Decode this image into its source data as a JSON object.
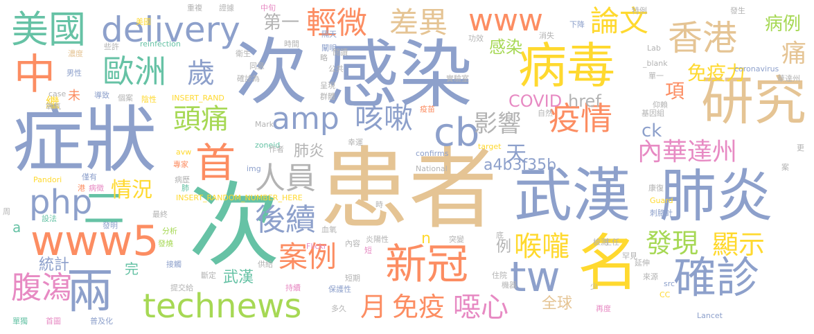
{
  "words": [
    {
      "text": "患者",
      "color": "#e5c494"
    },
    {
      "text": "次",
      "color": "#66c2a5"
    },
    {
      "text": "感染",
      "color": "#8da0cb"
    },
    {
      "text": "症狀",
      "color": "#8da0cb"
    },
    {
      "text": "武漢",
      "color": "#8da0cb"
    },
    {
      "text": "肺炎",
      "color": "#8da0cb"
    },
    {
      "text": "研究",
      "color": "#e5c494"
    },
    {
      "text": "病毒",
      "color": "#ffd92f"
    },
    {
      "text": "名",
      "color": "#ffd92f"
    },
    {
      "text": "首",
      "color": "#fc8d62"
    },
    {
      "text": "中",
      "color": "#fc8d62"
    },
    {
      "text": "香港",
      "color": "#e5c494"
    },
    {
      "text": "美國",
      "color": "#66c2a5"
    },
    {
      "text": "delivery",
      "color": "#8da0cb"
    },
    {
      "text": "technews",
      "color": "#a6d854"
    },
    {
      "text": "www5",
      "color": "#fc8d62"
    },
    {
      "text": "新冠",
      "color": "#fc8d62"
    },
    {
      "text": "確診",
      "color": "#8da0cb"
    },
    {
      "text": "cb",
      "color": "#8da0cb"
    },
    {
      "text": "tw",
      "color": "#8da0cb"
    },
    {
      "text": "兩",
      "color": "#8da0cb"
    },
    {
      "text": "www",
      "color": "#fc8d62"
    },
    {
      "text": "php",
      "color": "#8da0cb"
    },
    {
      "text": "amp",
      "color": "#8da0cb"
    },
    {
      "text": "二",
      "color": "#66c2a5"
    },
    {
      "text": "歐洲",
      "color": "#66c2a5"
    },
    {
      "text": "輕微",
      "color": "#fc8d62"
    },
    {
      "text": "差異",
      "color": "#e5c494"
    },
    {
      "text": "論文",
      "color": "#ffd92f"
    },
    {
      "text": "疫情",
      "color": "#fc8d62"
    },
    {
      "text": "歲",
      "color": "#8da0cb"
    },
    {
      "text": "頭痛",
      "color": "#a6d854"
    },
    {
      "text": "咳嗽",
      "color": "#8da0cb"
    },
    {
      "text": "人員",
      "color": "#b3b3b3"
    },
    {
      "text": "案例",
      "color": "#fc8d62"
    },
    {
      "text": "後續",
      "color": "#8da0cb"
    },
    {
      "text": "喉嚨",
      "color": "#ffd92f"
    },
    {
      "text": "發現",
      "color": "#a6d854"
    },
    {
      "text": "顯示",
      "color": "#ffd92f"
    },
    {
      "text": "腹瀉",
      "color": "#e78ac3"
    },
    {
      "text": "免疫",
      "color": "#fc8d62"
    },
    {
      "text": "噁心",
      "color": "#e78ac3"
    },
    {
      "text": "內華達州",
      "color": "#e78ac3"
    },
    {
      "text": "影響",
      "color": "#b3b3b3"
    },
    {
      "text": "情況",
      "color": "#ffd92f"
    },
    {
      "text": "項",
      "color": "#fc8d62"
    },
    {
      "text": "免疫力",
      "color": "#ffd92f"
    },
    {
      "text": "天",
      "color": "#8da0cb"
    },
    {
      "text": "月",
      "color": "#fc8d62"
    },
    {
      "text": "痛",
      "color": "#e5c494"
    },
    {
      "text": "病例",
      "color": "#a6d854"
    },
    {
      "text": "第一",
      "color": "#b3b3b3"
    },
    {
      "text": "感染",
      "color": "#a6d854"
    },
    {
      "text": "COVID",
      "color": "#e78ac3"
    },
    {
      "text": "href",
      "color": "#b3b3b3"
    },
    {
      "text": "a4b3f35b",
      "color": "#8da0cb"
    },
    {
      "text": "ck",
      "color": "#8da0cb"
    },
    {
      "text": "全球",
      "color": "#e5c494"
    },
    {
      "text": "統計",
      "color": "#8da0cb"
    },
    {
      "text": "武漢",
      "color": "#66c2a5"
    },
    {
      "text": "肺炎",
      "color": "#b3b3b3"
    },
    {
      "text": "n",
      "color": "#ffd92f"
    },
    {
      "text": "例",
      "color": "#b3b3b3"
    },
    {
      "text": "完",
      "color": "#66c2a5"
    },
    {
      "text": "a",
      "color": "#66c2a5"
    },
    {
      "text": "繼",
      "color": "#ffd92f"
    },
    {
      "text": "未",
      "color": "#fc8d62"
    },
    {
      "text": "reinfection",
      "color": "#66c2a5"
    },
    {
      "text": "INSERT_RAND",
      "color": "#ffd92f"
    },
    {
      "text": "INSERT_RANDOM_NUMBER_HERE",
      "color": "#ffd92f"
    },
    {
      "text": "coronavirus",
      "color": "#8da0cb"
    },
    {
      "text": "confirms",
      "color": "#8da0cb"
    },
    {
      "text": "National",
      "color": "#b3b3b3"
    },
    {
      "text": "Lancet",
      "color": "#8da0cb"
    },
    {
      "text": "Pandori",
      "color": "#ffd92f"
    },
    {
      "text": "zoneid",
      "color": "#66c2a5"
    },
    {
      "text": "Flickr",
      "color": "#e78ac3"
    },
    {
      "text": "Guard",
      "color": "#ffd92f"
    },
    {
      "text": "target",
      "color": "#ffd92f"
    },
    {
      "text": "Mark",
      "color": "#b3b3b3"
    },
    {
      "text": "img",
      "color": "#8da0cb"
    },
    {
      "text": "avw",
      "color": "#ffd92f"
    },
    {
      "text": "case",
      "color": "#b3b3b3"
    },
    {
      "text": "Lab",
      "color": "#b3b3b3"
    },
    {
      "text": "_blank",
      "color": "#b3b3b3"
    },
    {
      "text": "src",
      "color": "#8da0cb"
    },
    {
      "text": "CC",
      "color": "#ffd92f"
    },
    {
      "text": "美國",
      "color": "#ffd92f"
    },
    {
      "text": "濃度",
      "color": "#e5c494"
    },
    {
      "text": "些許",
      "color": "#b3b3b3"
    },
    {
      "text": "男性",
      "color": "#8da0cb"
    },
    {
      "text": "氧氣",
      "color": "#b3b3b3"
    },
    {
      "text": "導致",
      "color": "#8da0cb"
    },
    {
      "text": "個案",
      "color": "#b3b3b3"
    },
    {
      "text": "陰性",
      "color": "#ffd92f"
    },
    {
      "text": "專家",
      "color": "#fc8d62"
    },
    {
      "text": "僅有",
      "color": "#8da0cb"
    },
    {
      "text": "病歷",
      "color": "#b3b3b3"
    },
    {
      "text": "港",
      "color": "#fc8d62"
    },
    {
      "text": "病徵",
      "color": "#e78ac3"
    },
    {
      "text": "肺",
      "color": "#66c2a5"
    },
    {
      "text": "最終",
      "color": "#b3b3b3"
    },
    {
      "text": "設法",
      "color": "#66c2a5"
    },
    {
      "text": "發明",
      "color": "#8da0cb"
    },
    {
      "text": "分析",
      "color": "#a6d854"
    },
    {
      "text": "發燒",
      "color": "#a6d854"
    },
    {
      "text": "接觸",
      "color": "#8da0cb"
    },
    {
      "text": "斷定",
      "color": "#b3b3b3"
    },
    {
      "text": "提交給",
      "color": "#b3b3b3"
    },
    {
      "text": "單獨",
      "color": "#66c2a5"
    },
    {
      "text": "首圖",
      "color": "#e78ac3"
    },
    {
      "text": "普及化",
      "color": "#8da0cb"
    },
    {
      "text": "多久",
      "color": "#b3b3b3"
    },
    {
      "text": "持續",
      "color": "#e78ac3"
    },
    {
      "text": "保護性",
      "color": "#8da0cb"
    },
    {
      "text": "供給",
      "color": "#b3b3b3"
    },
    {
      "text": "短期",
      "color": "#b3b3b3"
    },
    {
      "text": "短",
      "color": "#e78ac3"
    },
    {
      "text": "內容",
      "color": "#b3b3b3"
    },
    {
      "text": "炎陽性",
      "color": "#b3b3b3"
    },
    {
      "text": "血氧",
      "color": "#b3b3b3"
    },
    {
      "text": "時",
      "color": "#b3b3b3"
    },
    {
      "text": "突變",
      "color": "#b3b3b3"
    },
    {
      "text": "底",
      "color": "#b3b3b3"
    },
    {
      "text": "住院",
      "color": "#b3b3b3"
    },
    {
      "text": "機器",
      "color": "#b3b3b3"
    },
    {
      "text": "檢測",
      "color": "#b3b3b3"
    },
    {
      "text": "罕見",
      "color": "#b3b3b3"
    },
    {
      "text": "主任",
      "color": "#b3b3b3"
    },
    {
      "text": "延伸",
      "color": "#b3b3b3"
    },
    {
      "text": "來源",
      "color": "#b3b3b3"
    },
    {
      "text": "再度",
      "color": "#e78ac3"
    },
    {
      "text": "少",
      "color": "#b3b3b3"
    },
    {
      "text": "康復",
      "color": "#b3b3b3"
    },
    {
      "text": "刺胳針",
      "color": "#8da0cb"
    },
    {
      "text": "案",
      "color": "#b3b3b3"
    },
    {
      "text": "更",
      "color": "#b3b3b3"
    },
    {
      "text": "周",
      "color": "#b3b3b3"
    },
    {
      "text": "重複",
      "color": "#b3b3b3"
    },
    {
      "text": "證據",
      "color": "#b3b3b3"
    },
    {
      "text": "中旬",
      "color": "#e78ac3"
    },
    {
      "text": "隔天",
      "color": "#8da0cb"
    },
    {
      "text": "闡明",
      "color": "#8da0cb"
    },
    {
      "text": "特例",
      "color": "#b3b3b3"
    },
    {
      "text": "發生",
      "color": "#b3b3b3"
    },
    {
      "text": "消失",
      "color": "#b3b3b3"
    },
    {
      "text": "下降",
      "color": "#8da0cb"
    },
    {
      "text": "功效",
      "color": "#b3b3b3"
    },
    {
      "text": "時間",
      "color": "#b3b3b3"
    },
    {
      "text": "略",
      "color": "#b3b3b3"
    },
    {
      "text": "閱讀",
      "color": "#b3b3b3"
    },
    {
      "text": "衛生",
      "color": "#b3b3b3"
    },
    {
      "text": "同意",
      "color": "#b3b3b3"
    },
    {
      "text": "確診為",
      "color": "#b3b3b3"
    },
    {
      "text": "公共",
      "color": "#b3b3b3"
    },
    {
      "text": "呈現",
      "color": "#b3b3b3"
    },
    {
      "text": "群體",
      "color": "#b3b3b3"
    },
    {
      "text": "實驗室",
      "color": "#b3b3b3"
    },
    {
      "text": "疫苗",
      "color": "#fc8d62"
    },
    {
      "text": "自然",
      "color": "#b3b3b3"
    },
    {
      "text": "幸運",
      "color": "#b3b3b3"
    },
    {
      "text": "作者",
      "color": "#b3b3b3"
    },
    {
      "text": "基因組",
      "color": "#b3b3b3"
    },
    {
      "text": "仰賴",
      "color": "#b3b3b3"
    },
    {
      "text": "華達州",
      "color": "#b3b3b3"
    },
    {
      "text": "單一",
      "color": "#b3b3b3"
    }
  ]
}
